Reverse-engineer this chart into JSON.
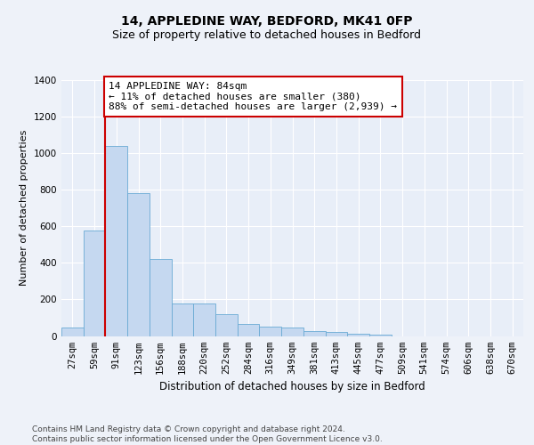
{
  "title1": "14, APPLEDINE WAY, BEDFORD, MK41 0FP",
  "title2": "Size of property relative to detached houses in Bedford",
  "xlabel": "Distribution of detached houses by size in Bedford",
  "ylabel": "Number of detached properties",
  "categories": [
    "27sqm",
    "59sqm",
    "91sqm",
    "123sqm",
    "156sqm",
    "188sqm",
    "220sqm",
    "252sqm",
    "284sqm",
    "316sqm",
    "349sqm",
    "381sqm",
    "413sqm",
    "445sqm",
    "477sqm",
    "509sqm",
    "541sqm",
    "574sqm",
    "606sqm",
    "638sqm",
    "670sqm"
  ],
  "values": [
    45,
    575,
    1040,
    780,
    420,
    180,
    180,
    120,
    65,
    50,
    45,
    25,
    20,
    10,
    5,
    0,
    0,
    0,
    0,
    0,
    0
  ],
  "bar_color": "#c5d8f0",
  "bar_edge_color": "#6aaad4",
  "vline_color": "#cc0000",
  "annotation_text": "14 APPLEDINE WAY: 84sqm\n← 11% of detached houses are smaller (380)\n88% of semi-detached houses are larger (2,939) →",
  "annotation_box_color": "#ffffff",
  "annotation_box_edge": "#cc0000",
  "ylim": [
    0,
    1400
  ],
  "yticks": [
    0,
    200,
    400,
    600,
    800,
    1000,
    1200,
    1400
  ],
  "bg_color": "#eef2f9",
  "plot_bg_color": "#e8eef8",
  "footer_text": "Contains HM Land Registry data © Crown copyright and database right 2024.\nContains public sector information licensed under the Open Government Licence v3.0.",
  "title1_fontsize": 10,
  "title2_fontsize": 9,
  "xlabel_fontsize": 8.5,
  "ylabel_fontsize": 8,
  "annotation_fontsize": 8,
  "footer_fontsize": 6.5,
  "tick_fontsize": 7.5
}
